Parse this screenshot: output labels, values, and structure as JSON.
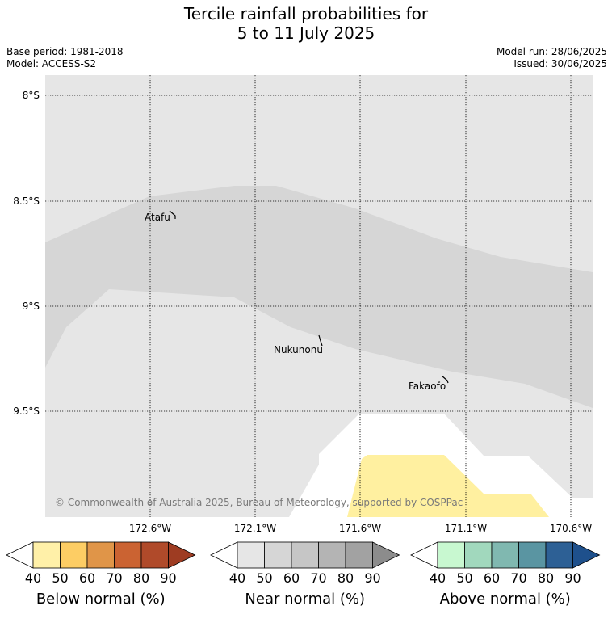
{
  "title_line1": "Tercile rainfall probabilities for",
  "title_line2": "5 to 11 July 2025",
  "meta": {
    "base_period": "Base period: 1981-2018",
    "model": "Model: ACCESS-S2",
    "model_run": "Model run: 28/06/2025",
    "issued": "Issued: 30/06/2025"
  },
  "map": {
    "lat_labels": [
      "8°S",
      "8.5°S",
      "9°S",
      "9.5°S"
    ],
    "lon_labels": [
      "172.6°W",
      "172.1°W",
      "171.6°W",
      "171.1°W",
      "170.6°W"
    ],
    "places": [
      "Atafu",
      "Nukunonu",
      "Fakaofo"
    ],
    "copyright": "© Commonwealth of Australia 2025, Bureau of Meteorology, supported by COSPPac"
  },
  "colorbars": [
    {
      "caption": "Below normal (%)",
      "ticks": [
        "40",
        "50",
        "60",
        "70",
        "80",
        "90"
      ],
      "colors": [
        "#fff0a8",
        "#fdcd64",
        "#e09548",
        "#cb6332",
        "#b04a2a",
        "#9e3c22"
      ]
    },
    {
      "caption": "Near normal (%)",
      "ticks": [
        "40",
        "50",
        "60",
        "70",
        "80",
        "90"
      ],
      "colors": [
        "#e6e6e6",
        "#d6d6d6",
        "#c6c6c6",
        "#b4b4b4",
        "#a2a2a2",
        "#8c8c8c"
      ]
    },
    {
      "caption": "Above normal (%)",
      "ticks": [
        "40",
        "50",
        "60",
        "70",
        "80",
        "90"
      ],
      "colors": [
        "#c8f8d0",
        "#a1d8bd",
        "#80b8b0",
        "#5a95a2",
        "#2d6095",
        "#1e508c"
      ]
    }
  ]
}
